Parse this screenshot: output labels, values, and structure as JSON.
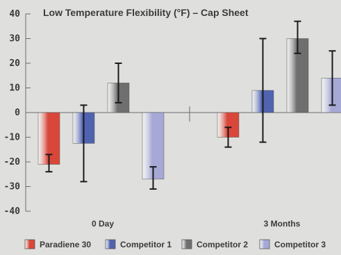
{
  "chart_data": {
    "type": "bar",
    "title": "Low Temperature Flexibility (°F) – Cap Sheet",
    "categories": [
      "0 Day",
      "3 Months"
    ],
    "ylim": [
      -40,
      40
    ],
    "yticks": [
      40,
      30,
      20,
      10,
      0,
      -10,
      -20,
      -30,
      -40
    ],
    "series": [
      {
        "name": "Paradiene 30",
        "color": "#d9473a",
        "values": [
          -21,
          -10
        ],
        "error_low": [
          -24,
          -14
        ],
        "error_high": [
          -17,
          -6
        ]
      },
      {
        "name": "Competitor 1",
        "color": "#4f63b0",
        "values": [
          -12.5,
          9
        ],
        "error_low": [
          -28,
          -12
        ],
        "error_high": [
          3,
          30
        ]
      },
      {
        "name": "Competitor 2",
        "color": "#6f6f6f",
        "values": [
          12,
          30
        ],
        "error_low": [
          4,
          24
        ],
        "error_high": [
          20,
          37
        ]
      },
      {
        "name": "Competitor 3",
        "color": "#a6a9d6",
        "values": [
          -27,
          14
        ],
        "error_low": [
          -31,
          3
        ],
        "error_high": [
          -22,
          25
        ]
      }
    ],
    "grid": false,
    "legend": "bottom"
  }
}
